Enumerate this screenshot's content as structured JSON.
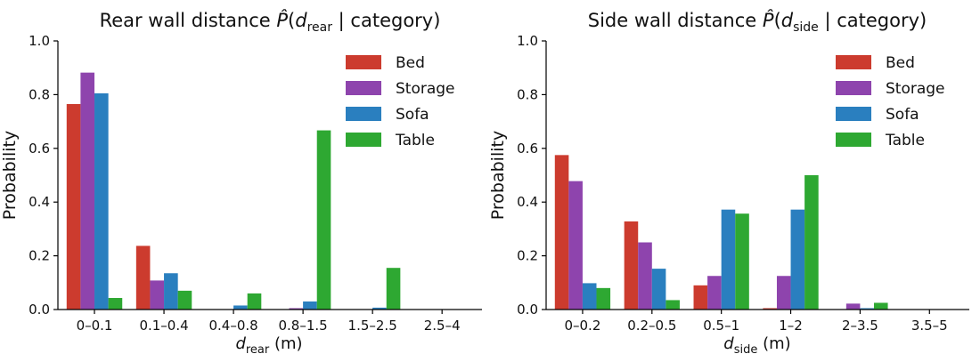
{
  "chart_data": [
    {
      "type": "bar",
      "title": "Rear wall distance",
      "title_math": {
        "p_hat": "P",
        "open": "(",
        "var": "d",
        "sub": "rear",
        "given": "|",
        "cond": "category",
        "close": ")"
      },
      "xlabel": {
        "var": "d",
        "sub": "rear",
        "unit": "(m)"
      },
      "ylabel": "Probability",
      "ylim": [
        0,
        1.0
      ],
      "yticks": [
        "0.0",
        "0.2",
        "0.4",
        "0.6",
        "0.8",
        "1.0"
      ],
      "categories": [
        "0–0.1",
        "0.1–0.4",
        "0.4–0.8",
        "0.8–1.5",
        "1.5–2.5",
        "2.5–4"
      ],
      "series": [
        {
          "name": "Bed",
          "color": "#cc3b2e",
          "values": [
            0.765,
            0.237,
            0.0,
            0.0,
            0.0,
            0.0
          ]
        },
        {
          "name": "Storage",
          "color": "#8e44ad",
          "values": [
            0.882,
            0.108,
            0.0,
            0.005,
            0.0,
            0.0
          ]
        },
        {
          "name": "Sofa",
          "color": "#2a7fbf",
          "values": [
            0.805,
            0.135,
            0.015,
            0.03,
            0.007,
            0.0
          ]
        },
        {
          "name": "Table",
          "color": "#2ea832",
          "values": [
            0.043,
            0.07,
            0.06,
            0.667,
            0.155,
            0.0
          ]
        }
      ],
      "grid": false,
      "legend": "top-right"
    },
    {
      "type": "bar",
      "title": "Side wall distance",
      "title_math": {
        "p_hat": "P",
        "open": "(",
        "var": "d",
        "sub": "side",
        "given": "|",
        "cond": "category",
        "close": ")"
      },
      "xlabel": {
        "var": "d",
        "sub": "side",
        "unit": "(m)"
      },
      "ylabel": "Probability",
      "ylim": [
        0,
        1.0
      ],
      "yticks": [
        "0.0",
        "0.2",
        "0.4",
        "0.6",
        "0.8",
        "1.0"
      ],
      "categories": [
        "0–0.2",
        "0.2–0.5",
        "0.5–1",
        "1–2",
        "2–3.5",
        "3.5–5"
      ],
      "series": [
        {
          "name": "Bed",
          "color": "#cc3b2e",
          "values": [
            0.575,
            0.328,
            0.09,
            0.005,
            0.0,
            0.0
          ]
        },
        {
          "name": "Storage",
          "color": "#8e44ad",
          "values": [
            0.478,
            0.25,
            0.125,
            0.125,
            0.022,
            0.0
          ]
        },
        {
          "name": "Sofa",
          "color": "#2a7fbf",
          "values": [
            0.098,
            0.152,
            0.372,
            0.372,
            0.005,
            0.0
          ]
        },
        {
          "name": "Table",
          "color": "#2ea832",
          "values": [
            0.08,
            0.035,
            0.357,
            0.5,
            0.025,
            0.0
          ]
        }
      ],
      "grid": false,
      "legend": "top-right"
    }
  ]
}
